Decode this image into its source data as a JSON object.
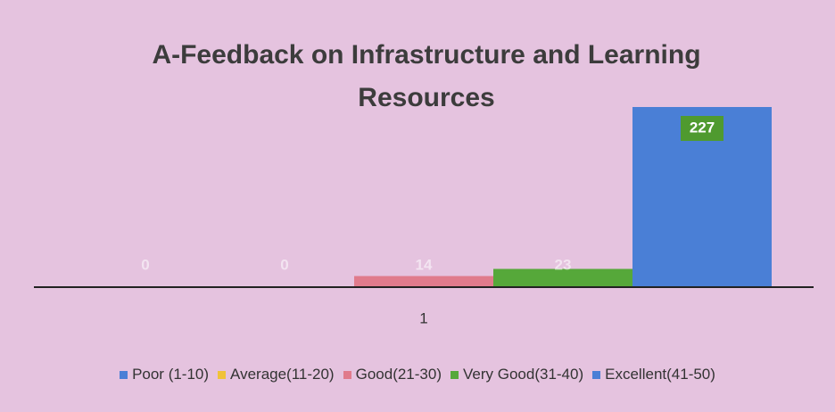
{
  "chart_data": {
    "type": "bar",
    "title": "A-Feedback on Infrastructure and Learning Resources",
    "categories": [
      "1"
    ],
    "series": [
      {
        "name": "Poor (1-10)",
        "color": "#4a7fd6",
        "values": [
          0
        ]
      },
      {
        "name": "Average(11-20)",
        "color": "#f0c23a",
        "values": [
          0
        ]
      },
      {
        "name": "Good(21-30)",
        "color": "#e07b8c",
        "values": [
          14
        ]
      },
      {
        "name": "Very Good(31-40)",
        "color": "#56a83a",
        "values": [
          23
        ]
      },
      {
        "name": "Excellent(41-50)",
        "color": "#4a7fd6",
        "values": [
          227
        ],
        "label_background": "#4f9a2f"
      }
    ],
    "legend": "bottom"
  }
}
